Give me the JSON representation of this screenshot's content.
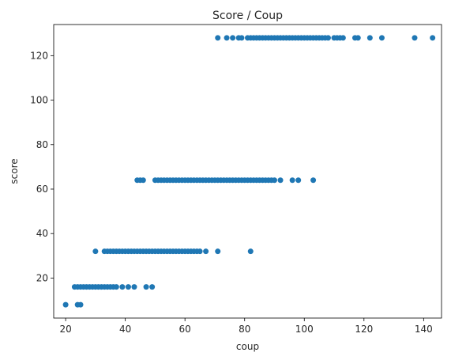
{
  "chart_data": {
    "type": "scatter",
    "title": "Score / Coup",
    "xlabel": "coup",
    "ylabel": "score",
    "xlim": [
      16,
      146
    ],
    "ylim": [
      2,
      134
    ],
    "xticks": [
      20,
      40,
      60,
      80,
      100,
      120,
      140
    ],
    "yticks": [
      20,
      40,
      60,
      80,
      100,
      120
    ],
    "grid": false,
    "marker_color": "#1f77b4",
    "series": [
      {
        "points": [
          [
            20,
            8
          ],
          [
            24,
            8
          ],
          [
            25,
            8
          ],
          [
            23,
            16
          ],
          [
            24,
            16
          ],
          [
            25,
            16
          ],
          [
            26,
            16
          ],
          [
            27,
            16
          ],
          [
            28,
            16
          ],
          [
            29,
            16
          ],
          [
            30,
            16
          ],
          [
            31,
            16
          ],
          [
            32,
            16
          ],
          [
            33,
            16
          ],
          [
            34,
            16
          ],
          [
            35,
            16
          ],
          [
            36,
            16
          ],
          [
            37,
            16
          ],
          [
            39,
            16
          ],
          [
            41,
            16
          ],
          [
            43,
            16
          ],
          [
            47,
            16
          ],
          [
            49,
            16
          ],
          [
            30,
            32
          ],
          [
            33,
            32
          ],
          [
            34,
            32
          ],
          [
            35,
            32
          ],
          [
            36,
            32
          ],
          [
            37,
            32
          ],
          [
            38,
            32
          ],
          [
            39,
            32
          ],
          [
            40,
            32
          ],
          [
            41,
            32
          ],
          [
            42,
            32
          ],
          [
            43,
            32
          ],
          [
            44,
            32
          ],
          [
            45,
            32
          ],
          [
            46,
            32
          ],
          [
            47,
            32
          ],
          [
            48,
            32
          ],
          [
            49,
            32
          ],
          [
            50,
            32
          ],
          [
            51,
            32
          ],
          [
            52,
            32
          ],
          [
            53,
            32
          ],
          [
            54,
            32
          ],
          [
            55,
            32
          ],
          [
            56,
            32
          ],
          [
            57,
            32
          ],
          [
            58,
            32
          ],
          [
            59,
            32
          ],
          [
            60,
            32
          ],
          [
            61,
            32
          ],
          [
            62,
            32
          ],
          [
            63,
            32
          ],
          [
            64,
            32
          ],
          [
            65,
            32
          ],
          [
            67,
            32
          ],
          [
            71,
            32
          ],
          [
            82,
            32
          ],
          [
            44,
            64
          ],
          [
            45,
            64
          ],
          [
            46,
            64
          ],
          [
            50,
            64
          ],
          [
            51,
            64
          ],
          [
            52,
            64
          ],
          [
            53,
            64
          ],
          [
            54,
            64
          ],
          [
            55,
            64
          ],
          [
            56,
            64
          ],
          [
            57,
            64
          ],
          [
            58,
            64
          ],
          [
            59,
            64
          ],
          [
            60,
            64
          ],
          [
            61,
            64
          ],
          [
            62,
            64
          ],
          [
            63,
            64
          ],
          [
            64,
            64
          ],
          [
            65,
            64
          ],
          [
            66,
            64
          ],
          [
            67,
            64
          ],
          [
            68,
            64
          ],
          [
            69,
            64
          ],
          [
            70,
            64
          ],
          [
            71,
            64
          ],
          [
            72,
            64
          ],
          [
            73,
            64
          ],
          [
            74,
            64
          ],
          [
            75,
            64
          ],
          [
            76,
            64
          ],
          [
            77,
            64
          ],
          [
            78,
            64
          ],
          [
            79,
            64
          ],
          [
            80,
            64
          ],
          [
            81,
            64
          ],
          [
            82,
            64
          ],
          [
            83,
            64
          ],
          [
            84,
            64
          ],
          [
            85,
            64
          ],
          [
            86,
            64
          ],
          [
            87,
            64
          ],
          [
            88,
            64
          ],
          [
            89,
            64
          ],
          [
            90,
            64
          ],
          [
            92,
            64
          ],
          [
            96,
            64
          ],
          [
            98,
            64
          ],
          [
            103,
            64
          ],
          [
            71,
            128
          ],
          [
            74,
            128
          ],
          [
            76,
            128
          ],
          [
            78,
            128
          ],
          [
            79,
            128
          ],
          [
            81,
            128
          ],
          [
            82,
            128
          ],
          [
            83,
            128
          ],
          [
            84,
            128
          ],
          [
            85,
            128
          ],
          [
            86,
            128
          ],
          [
            87,
            128
          ],
          [
            88,
            128
          ],
          [
            89,
            128
          ],
          [
            90,
            128
          ],
          [
            91,
            128
          ],
          [
            92,
            128
          ],
          [
            93,
            128
          ],
          [
            94,
            128
          ],
          [
            95,
            128
          ],
          [
            96,
            128
          ],
          [
            97,
            128
          ],
          [
            98,
            128
          ],
          [
            99,
            128
          ],
          [
            100,
            128
          ],
          [
            101,
            128
          ],
          [
            102,
            128
          ],
          [
            103,
            128
          ],
          [
            104,
            128
          ],
          [
            105,
            128
          ],
          [
            106,
            128
          ],
          [
            107,
            128
          ],
          [
            108,
            128
          ],
          [
            110,
            128
          ],
          [
            111,
            128
          ],
          [
            112,
            128
          ],
          [
            113,
            128
          ],
          [
            117,
            128
          ],
          [
            118,
            128
          ],
          [
            122,
            128
          ],
          [
            126,
            128
          ],
          [
            137,
            128
          ],
          [
            143,
            128
          ]
        ]
      }
    ]
  }
}
